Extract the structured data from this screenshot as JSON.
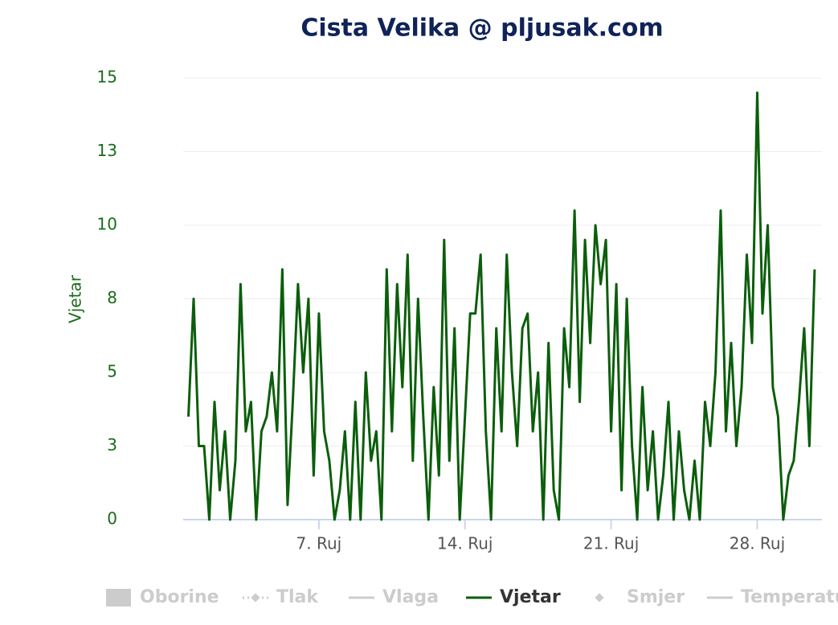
{
  "chart_data": {
    "type": "line",
    "title": "Cista Velika @ pljusak.com",
    "y_label": "Vjetar",
    "x": [
      0.75,
      1,
      1.25,
      1.5,
      1.75,
      2,
      2.25,
      2.5,
      2.75,
      3,
      3.25,
      3.5,
      3.75,
      4,
      4.25,
      4.5,
      4.75,
      5,
      5.25,
      5.5,
      5.75,
      6,
      6.25,
      6.5,
      6.75,
      7,
      7.25,
      7.5,
      7.75,
      8,
      8.25,
      8.5,
      8.75,
      9,
      9.25,
      9.5,
      9.75,
      10,
      10.25,
      10.5,
      10.75,
      11,
      11.25,
      11.5,
      11.75,
      12,
      12.25,
      12.5,
      12.75,
      13,
      13.25,
      13.5,
      13.75,
      14,
      14.25,
      14.5,
      14.75,
      15,
      15.25,
      15.5,
      15.75,
      16,
      16.25,
      16.5,
      16.75,
      17,
      17.25,
      17.5,
      17.75,
      18,
      18.25,
      18.5,
      18.75,
      19,
      19.25,
      19.5,
      19.75,
      20,
      20.25,
      20.5,
      20.75,
      21,
      21.25,
      21.5,
      21.75,
      22,
      22.25,
      22.5,
      22.75,
      23,
      23.25,
      23.5,
      23.75,
      24,
      24.25,
      24.5,
      24.75,
      25,
      25.25,
      25.5,
      25.75,
      26,
      26.25,
      26.5,
      26.75,
      27,
      27.25,
      27.5,
      27.75,
      28,
      28.25,
      28.5,
      28.75,
      29,
      29.25,
      29.5,
      29.75,
      30,
      30.25,
      30.5,
      30.75
    ],
    "series": [
      {
        "name": "Vjetar",
        "color": "#0b5e0b",
        "values": [
          3.5,
          7.5,
          2.5,
          2.5,
          0,
          4,
          1,
          3,
          0,
          2,
          8,
          3,
          4,
          0,
          3,
          3.5,
          5,
          3,
          8.5,
          0.5,
          4,
          8,
          5,
          7.5,
          1.5,
          7,
          3,
          2,
          0,
          1,
          3,
          0,
          4,
          0,
          5,
          2,
          3,
          0,
          8.5,
          3,
          8,
          4.5,
          9,
          2,
          7.5,
          3.5,
          0,
          4.5,
          1.5,
          9.5,
          2,
          6.5,
          0,
          3.5,
          7,
          7,
          9,
          3,
          0,
          6.5,
          3,
          9,
          5,
          2.5,
          6.5,
          7,
          3,
          5,
          0,
          6,
          1,
          0,
          6.5,
          4.5,
          10.5,
          4,
          9.5,
          6,
          10,
          8,
          9.5,
          3,
          8,
          1,
          7.5,
          2.5,
          0,
          4.5,
          1,
          3,
          0,
          1.5,
          4,
          0,
          3,
          1,
          0,
          2,
          0,
          4,
          2.5,
          5,
          10.5,
          3,
          6,
          2.5,
          4.5,
          9,
          6,
          14.5,
          7,
          10,
          4.5,
          3.5,
          0,
          1.5,
          2,
          4,
          6.5,
          2.5,
          8.5
        ]
      }
    ],
    "inactive_legend": [
      "Oborine",
      "Tlak",
      "Vlaga",
      "Smjer",
      "Temperatura"
    ],
    "xlim": [
      0.5,
      31.1
    ],
    "xticks": [
      {
        "value": 7,
        "label": "7. Ruj"
      },
      {
        "value": 14,
        "label": "14. Ruj"
      },
      {
        "value": 21,
        "label": "21. Ruj"
      },
      {
        "value": 28,
        "label": "28. Ruj"
      }
    ],
    "ylim": [
      0,
      15
    ],
    "yticks": [
      0,
      {
        "value": 2.5,
        "label": "3"
      },
      5,
      {
        "value": 7.5,
        "label": "8"
      },
      10,
      {
        "value": 12.5,
        "label": "13"
      },
      15
    ],
    "grid": true
  }
}
